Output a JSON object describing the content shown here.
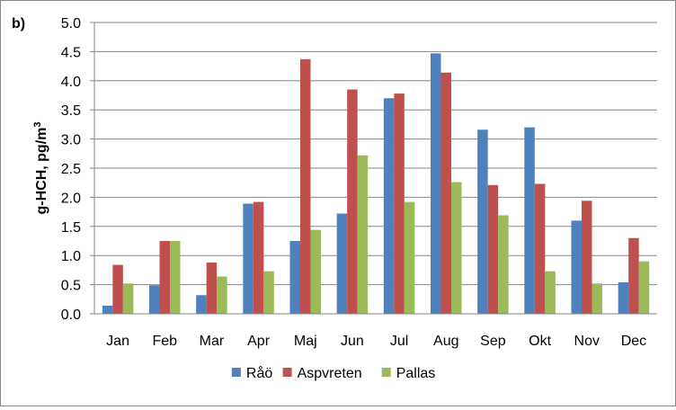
{
  "panel_label": "b)",
  "chart_data": {
    "type": "bar",
    "title": "",
    "ylabel": "g-HCH, pg/m",
    "ylabel_superscript": "3",
    "xlabel": "",
    "ylim": [
      0,
      5
    ],
    "yticks": [
      "0.0",
      "0.5",
      "1.0",
      "1.5",
      "2.0",
      "2.5",
      "3.0",
      "3.5",
      "4.0",
      "4.5",
      "5.0"
    ],
    "grid": true,
    "legend_position": "bottom",
    "categories": [
      "Jan",
      "Feb",
      "Mar",
      "Apr",
      "Maj",
      "Jun",
      "Jul",
      "Aug",
      "Sep",
      "Okt",
      "Nov",
      "Dec"
    ],
    "series": [
      {
        "name": "Råö",
        "color": "#4F81BD",
        "values": [
          0.14,
          0.49,
          0.32,
          1.89,
          1.25,
          1.72,
          3.7,
          4.47,
          3.16,
          3.2,
          1.6,
          0.54
        ]
      },
      {
        "name": "Aspvreten",
        "color": "#C0504D",
        "values": [
          0.84,
          1.25,
          0.88,
          1.92,
          4.37,
          3.85,
          3.78,
          4.14,
          2.21,
          2.23,
          1.94,
          1.3
        ]
      },
      {
        "name": "Pallas",
        "color": "#9BBB59",
        "values": [
          0.52,
          1.25,
          0.64,
          0.73,
          1.44,
          2.72,
          1.92,
          2.26,
          1.69,
          0.73,
          0.52,
          0.9
        ]
      }
    ]
  }
}
